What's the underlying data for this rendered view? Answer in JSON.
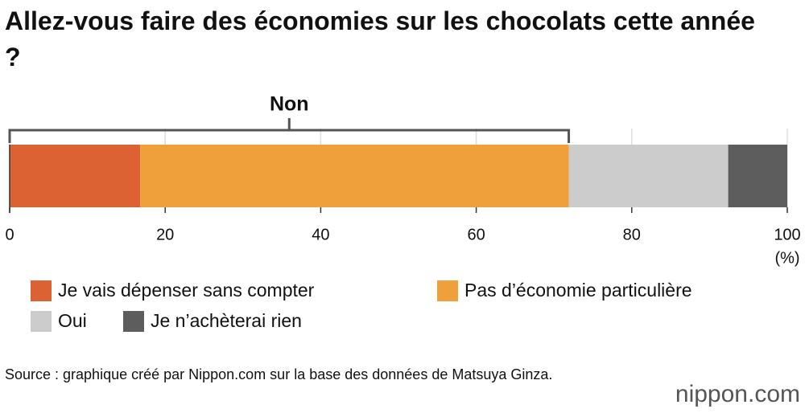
{
  "chart_data": {
    "type": "stacked-bar",
    "title": "Allez-vous faire des économies sur les chocolats cette année ?",
    "bracket_label": "Non",
    "series": [
      {
        "name": "Je vais dépenser sans compter",
        "color": "#dd6233",
        "values": [
          16.8
        ]
      },
      {
        "name": "Pas d’économie particulière",
        "color": "#f0a03a",
        "values": [
          55.1
        ]
      },
      {
        "name": "Oui",
        "color": "#cccccc",
        "values": [
          20.5
        ]
      },
      {
        "name": "Je n’achèterai rien",
        "color": "#5d5d5d",
        "values": [
          7.6
        ]
      }
    ],
    "xlim": [
      0,
      100
    ],
    "xticks": [
      0,
      20,
      40,
      60,
      80,
      100
    ],
    "x_unit": "(%)",
    "grid": true,
    "source": "Source : graphique créé par Nippon.com sur la base des données de Matsuya Ginza.",
    "logo": "nippon.com"
  }
}
